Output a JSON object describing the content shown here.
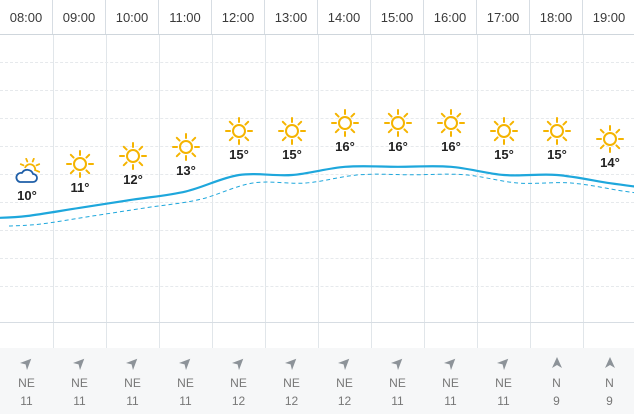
{
  "hours": [
    "08:00",
    "09:00",
    "10:00",
    "11:00",
    "12:00",
    "13:00",
    "14:00",
    "15:00",
    "16:00",
    "17:00",
    "18:00",
    "19:00"
  ],
  "temps": [
    "10°",
    "11°",
    "12°",
    "13°",
    "15°",
    "15°",
    "16°",
    "16°",
    "16°",
    "15°",
    "15°",
    "14°"
  ],
  "icons": [
    "partly-cloudy-icon",
    "sun-icon",
    "sun-icon",
    "sun-icon",
    "sun-icon",
    "sun-icon",
    "sun-icon",
    "sun-icon",
    "sun-icon",
    "sun-icon",
    "sun-icon",
    "sun-icon"
  ],
  "wind": {
    "directions": [
      "NE",
      "NE",
      "NE",
      "NE",
      "NE",
      "NE",
      "NE",
      "NE",
      "NE",
      "NE",
      "N",
      "N"
    ],
    "speeds": [
      "11",
      "11",
      "11",
      "11",
      "12",
      "12",
      "12",
      "11",
      "11",
      "11",
      "9",
      "9"
    ]
  },
  "colors": {
    "curve": "#1ea7dc",
    "sun": "#f5b400",
    "cloud": "#1f5fa8",
    "arrow": "#8d9399"
  }
}
